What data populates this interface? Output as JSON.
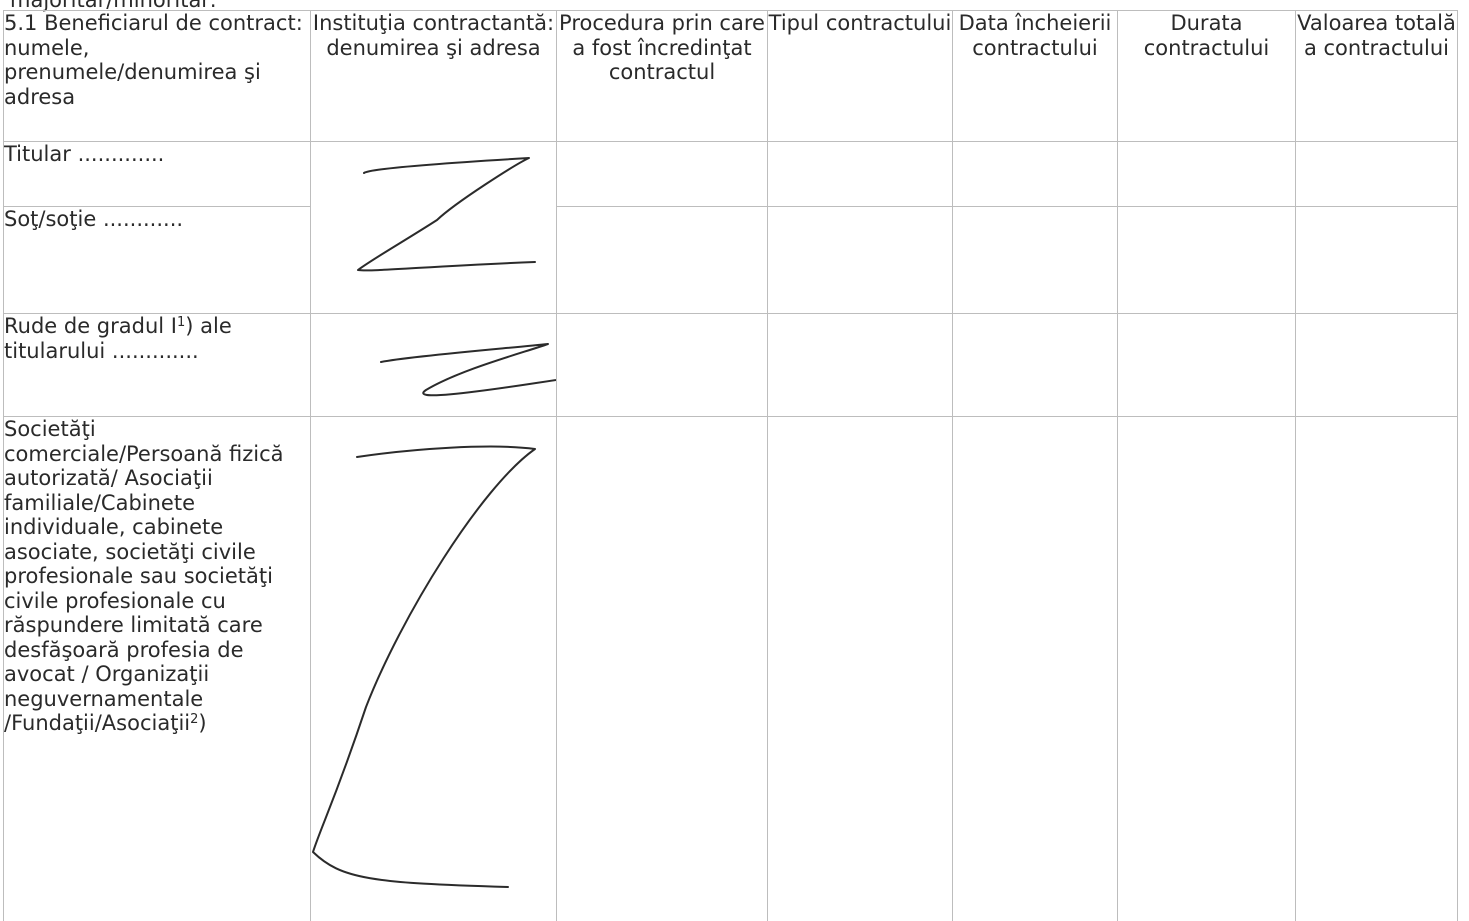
{
  "cut_line_text": "majoritar/minoritar:",
  "table": {
    "headers": {
      "beneficiary": "5.1 Beneficiarul de contract: numele, prenumele/denumirea şi adresa",
      "institution": "Instituţia contractantă: denumirea şi adresa",
      "procedure": "Procedura prin care a fost încredinţat contractul",
      "type": "Tipul contractului",
      "date": "Data încheierii contractului",
      "duration": "Durata contractului",
      "value": "Valoarea totală a contractului"
    },
    "rows": {
      "titular": {
        "label": "Titular ............."
      },
      "spouse": {
        "label": "Soţ/soţie ............"
      },
      "relatives": {
        "label_prefix": "Rude de gradul I",
        "label_sup": "1",
        "label_suffix": ") ale titularului ............."
      },
      "companies": {
        "label_prefix": "Societăţi comerciale/Persoană fizică autorizată/ Asociaţii familiale/Cabinete individuale, cabinete asociate, societăţi civile profesionale sau societăţi civile profesionale cu răspundere limitată care desfăşoară profesia de avocat / Organizaţii neguvernamentale /Fundaţii/Asociaţii",
        "label_sup": "2",
        "label_suffix": ")"
      }
    }
  }
}
